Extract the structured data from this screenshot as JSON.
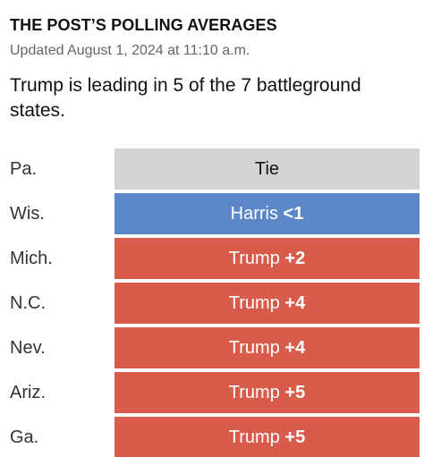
{
  "header": {
    "kicker": "THE POST’S POLLING AVERAGES",
    "updated": "Updated August 1, 2024 at 11:10 a.m.",
    "headline": "Trump is leading in 5 of the 7 battleground states."
  },
  "colors": {
    "tie": "#d3d3d3",
    "harris": "#5b87c8",
    "trump": "#d95b4b"
  },
  "chart_data": {
    "type": "table",
    "rows": [
      {
        "state": "Pa.",
        "leader": "Tie",
        "candidate": "Tie",
        "margin": "",
        "party": "tie"
      },
      {
        "state": "Wis.",
        "leader": "Harris",
        "candidate": "Harris",
        "margin": "<1",
        "party": "harris"
      },
      {
        "state": "Mich.",
        "leader": "Trump",
        "candidate": "Trump",
        "margin": "+2",
        "party": "trump"
      },
      {
        "state": "N.C.",
        "leader": "Trump",
        "candidate": "Trump",
        "margin": "+4",
        "party": "trump"
      },
      {
        "state": "Nev.",
        "leader": "Trump",
        "candidate": "Trump",
        "margin": "+4",
        "party": "trump"
      },
      {
        "state": "Ariz.",
        "leader": "Trump",
        "candidate": "Trump",
        "margin": "+5",
        "party": "trump"
      },
      {
        "state": "Ga.",
        "leader": "Trump",
        "candidate": "Trump",
        "margin": "+5",
        "party": "trump"
      }
    ]
  }
}
